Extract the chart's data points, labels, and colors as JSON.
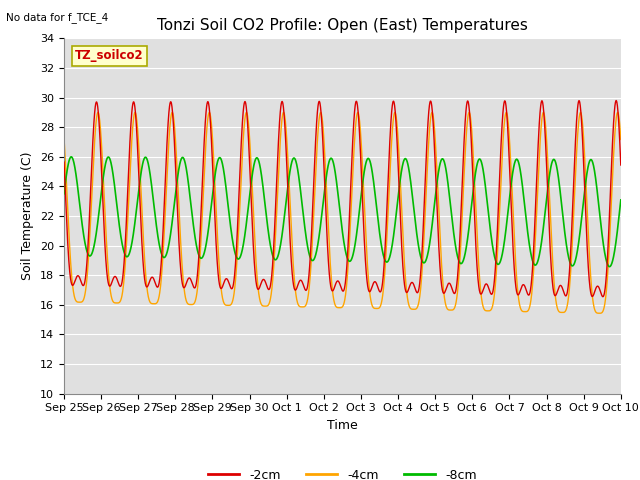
{
  "title": "Tonzi Soil CO2 Profile: Open (East) Temperatures",
  "xlabel": "Time",
  "ylabel": "Soil Temperature (C)",
  "top_left_text": "No data for f_TCE_4",
  "legend_box_text": "TZ_soilco2",
  "ylim": [
    10,
    34
  ],
  "yticks": [
    10,
    12,
    14,
    16,
    18,
    20,
    22,
    24,
    26,
    28,
    30,
    32,
    34
  ],
  "xtick_labels": [
    "Sep 25",
    "Sep 26",
    "Sep 27",
    "Sep 28",
    "Sep 29",
    "Sep 30",
    "Oct 1",
    "Oct 2",
    "Oct 3",
    "Oct 4",
    "Oct 5",
    "Oct 6",
    "Oct 7",
    "Oct 8",
    "Oct 9",
    "Oct 10"
  ],
  "color_2cm": "#dd0000",
  "color_4cm": "#ffa500",
  "color_8cm": "#00bb00",
  "background_color": "#e0e0e0",
  "legend_entries": [
    "-2cm",
    "-4cm",
    "-8cm"
  ],
  "title_fontsize": 11,
  "axis_label_fontsize": 9,
  "tick_fontsize": 8,
  "grid_color": "#ffffff"
}
